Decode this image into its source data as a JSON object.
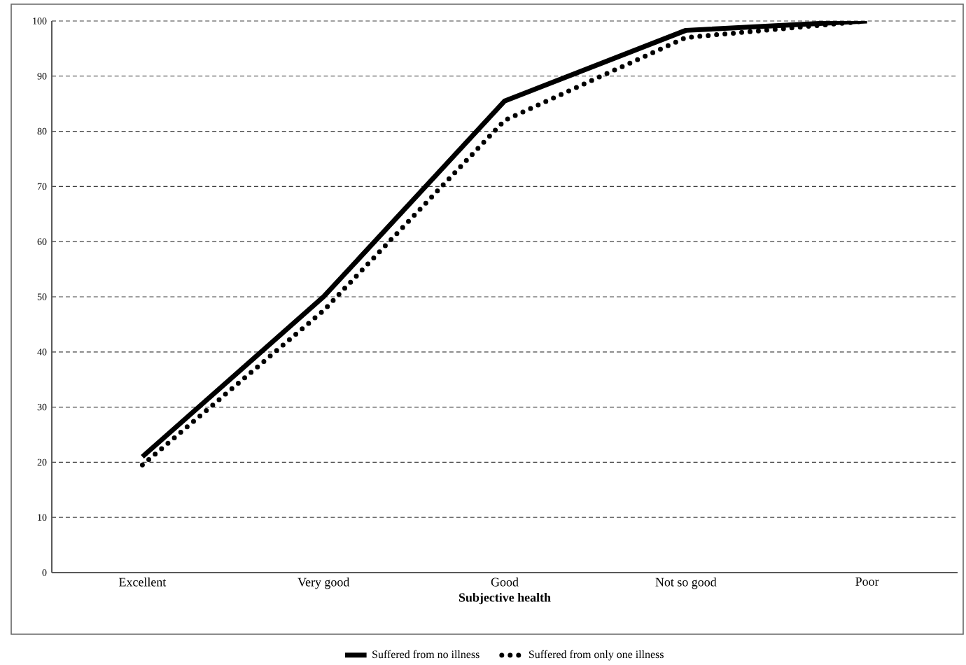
{
  "chart_data": {
    "type": "line",
    "xlabel": "Subjective health",
    "categories": [
      "Excellent",
      "Very good",
      "Good",
      "Not so good",
      "Poor"
    ],
    "series": [
      {
        "name": "Suffered from no illness",
        "color": "#000000",
        "line_style": "solid",
        "values": [
          21,
          50,
          85.5,
          98.3,
          100
        ]
      },
      {
        "name": "Suffered from only one illness",
        "color": "#000000",
        "line_style": "dotted",
        "values": [
          19.5,
          47.5,
          82,
          97,
          100
        ]
      }
    ],
    "ylim": [
      0,
      100
    ],
    "yticks": [
      0,
      10,
      20,
      30,
      40,
      50,
      60,
      70,
      80,
      90,
      100
    ],
    "grid": "y",
    "legend": "bottom",
    "marker": "none"
  }
}
